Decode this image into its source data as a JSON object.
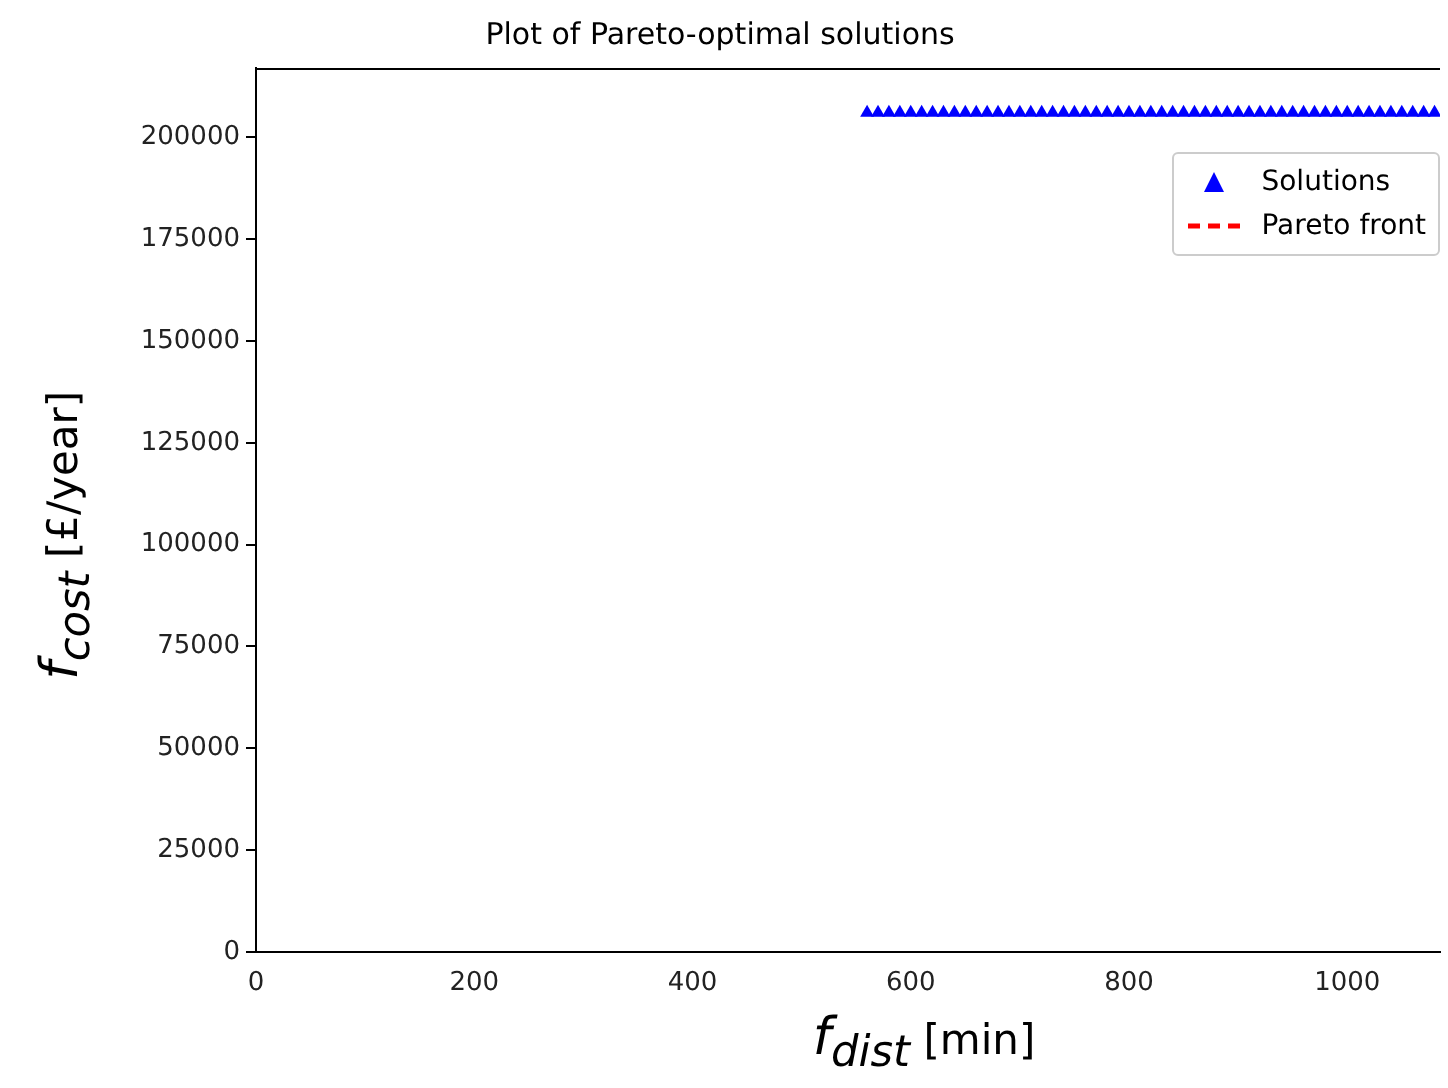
{
  "chart_data": {
    "type": "scatter",
    "title": "Plot of Pareto-optimal solutions",
    "xlabel": "f$_{dist}$ [min]",
    "ylabel": "f$_{cost}$  [£/year]",
    "xlim": [
      0,
      1085
    ],
    "ylim": [
      0,
      217000
    ],
    "xticks": [
      0,
      200,
      400,
      600,
      800,
      1000
    ],
    "yticks": [
      0,
      25000,
      50000,
      75000,
      100000,
      125000,
      150000,
      175000,
      200000
    ],
    "legend": "top right",
    "series": [
      {
        "name": "Solutions",
        "type": "scatter",
        "marker": "triangle",
        "color": "#0000ff",
        "x": [
          560,
          570,
          580,
          590,
          600,
          610,
          620,
          630,
          640,
          650,
          660,
          670,
          680,
          690,
          700,
          710,
          720,
          730,
          740,
          750,
          760,
          770,
          780,
          790,
          800,
          810,
          820,
          830,
          840,
          850,
          860,
          870,
          880,
          890,
          900,
          910,
          920,
          930,
          940,
          950,
          960,
          970,
          980,
          990,
          1000,
          1010,
          1020,
          1030,
          1040,
          1050,
          1060,
          1070,
          1080
        ],
        "values": [
          206000,
          206000,
          206000,
          206000,
          206000,
          206000,
          206000,
          206000,
          206000,
          206000,
          206000,
          206000,
          206000,
          206000,
          206000,
          206000,
          206000,
          206000,
          206000,
          206000,
          206000,
          206000,
          206000,
          206000,
          206000,
          206000,
          206000,
          206000,
          206000,
          206000,
          206000,
          206000,
          206000,
          206000,
          206000,
          206000,
          206000,
          206000,
          206000,
          206000,
          206000,
          206000,
          206000,
          206000,
          206000,
          206000,
          206000,
          206000,
          206000,
          206000,
          206000,
          206000,
          206000
        ]
      },
      {
        "name": "Pareto front",
        "type": "line",
        "marker": "none",
        "line_style": "dashed",
        "color": "#ff0000"
      }
    ]
  }
}
